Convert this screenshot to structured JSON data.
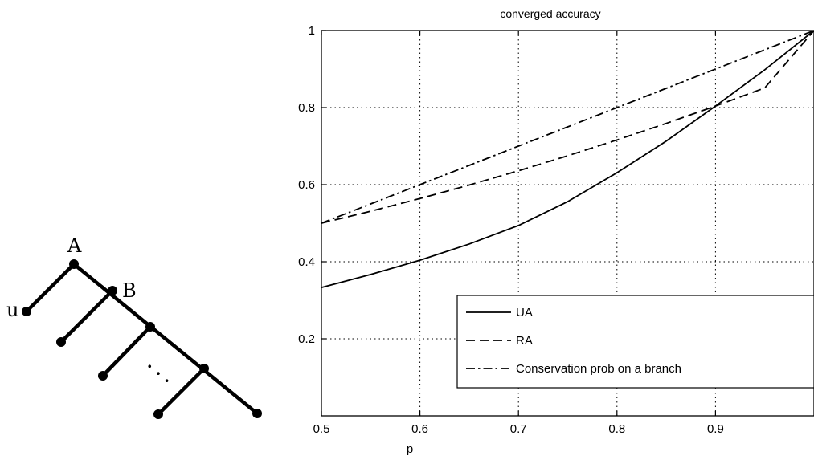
{
  "tree": {
    "labels": {
      "a": "A",
      "b": "B",
      "u": "u"
    },
    "ellipsis": "· · ·"
  },
  "chart_data": {
    "type": "line",
    "title": "converged accuracy",
    "xlabel": "p",
    "ylabel": "",
    "xlim": [
      0.5,
      1.0
    ],
    "ylim": [
      0.0,
      1.0
    ],
    "xticks": [
      0.5,
      0.6,
      0.7,
      0.8,
      0.9
    ],
    "yticks": [
      0.2,
      0.4,
      0.6,
      0.8,
      1
    ],
    "grid": true,
    "legend_position": "bottom-right",
    "x": [
      0.5,
      0.55,
      0.6,
      0.65,
      0.7,
      0.75,
      0.8,
      0.85,
      0.9,
      0.95,
      1.0
    ],
    "series": [
      {
        "name": "UA",
        "style": "solid",
        "values": [
          0.333,
          0.367,
          0.404,
          0.446,
          0.494,
          0.556,
          0.631,
          0.713,
          0.804,
          0.898,
          1.0
        ]
      },
      {
        "name": "RA",
        "style": "dashed",
        "values": [
          0.5,
          0.531,
          0.564,
          0.599,
          0.636,
          0.675,
          0.716,
          0.759,
          0.804,
          0.851,
          1.0
        ]
      },
      {
        "name": "Conservation prob on a branch",
        "style": "dashdot",
        "values": [
          0.5,
          0.55,
          0.6,
          0.65,
          0.7,
          0.75,
          0.8,
          0.85,
          0.9,
          0.95,
          1.0
        ]
      }
    ]
  }
}
